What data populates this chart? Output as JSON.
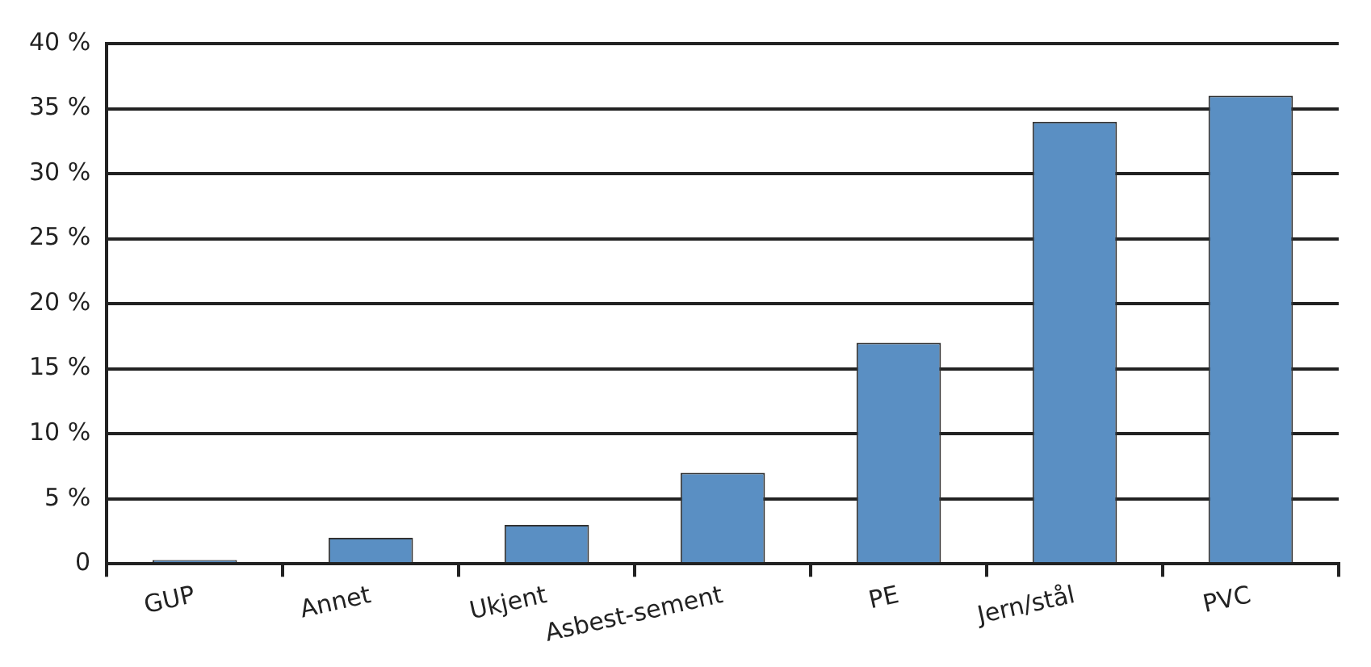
{
  "chart_data": {
    "type": "bar",
    "categories": [
      "GUP",
      "Annet",
      "Ukjent",
      "Asbest-sement",
      "PE",
      "Jern/stål",
      "PVC"
    ],
    "values": [
      0.3,
      2,
      3,
      7,
      17,
      34,
      36
    ],
    "color": "#5a8fc3",
    "ylim": [
      0,
      40
    ],
    "yticks": [
      0,
      {
        "value": 5,
        "label": "5 %"
      },
      {
        "value": 10,
        "label": "10 %"
      },
      {
        "value": 15,
        "label": "15 %"
      },
      {
        "value": 20,
        "label": "20 %"
      },
      {
        "value": 25,
        "label": "25 %"
      },
      {
        "value": 30,
        "label": "30 %"
      },
      {
        "value": 35,
        "label": "35 %"
      },
      {
        "value": 40,
        "label": "40 %"
      }
    ],
    "grid": "y",
    "legend": false
  }
}
